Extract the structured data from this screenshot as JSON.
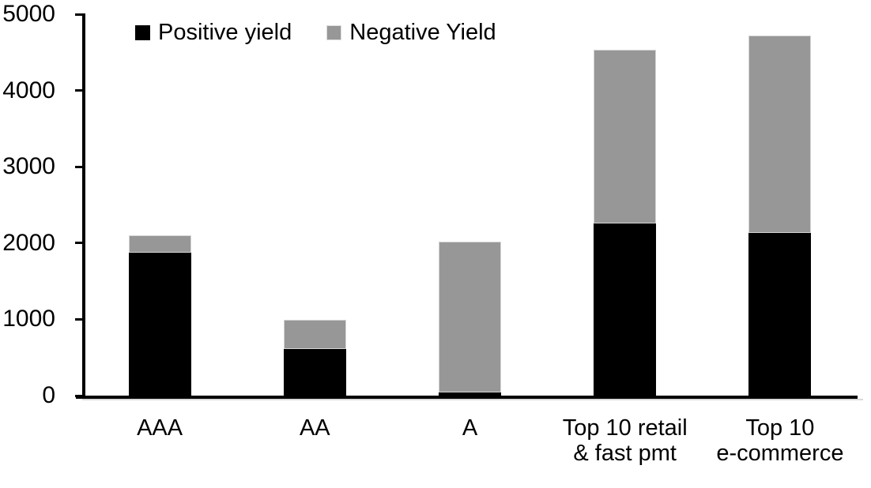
{
  "chart_data": {
    "type": "bar",
    "stacked": true,
    "title": "",
    "xlabel": "",
    "ylabel": "",
    "categories": [
      "AAA",
      "AA",
      "A",
      "Top 10 retail\n& fast pmt",
      "Top 10\ne-commerce"
    ],
    "series": [
      {
        "name": "Positive yield",
        "color": "#000000",
        "values": [
          1870,
          610,
          40,
          2260,
          2130
        ]
      },
      {
        "name": "Negative Yield",
        "color": "#979797",
        "values": [
          230,
          380,
          1980,
          2270,
          2590
        ]
      }
    ],
    "stack_totals": [
      2100,
      990,
      2020,
      4530,
      4720
    ],
    "ylim": [
      0,
      5000
    ],
    "yticks": [
      0,
      1000,
      2000,
      3000,
      4000,
      5000
    ],
    "grid": false,
    "legend_position": "top",
    "axis_color": "#000000",
    "background_color": "#ffffff"
  }
}
